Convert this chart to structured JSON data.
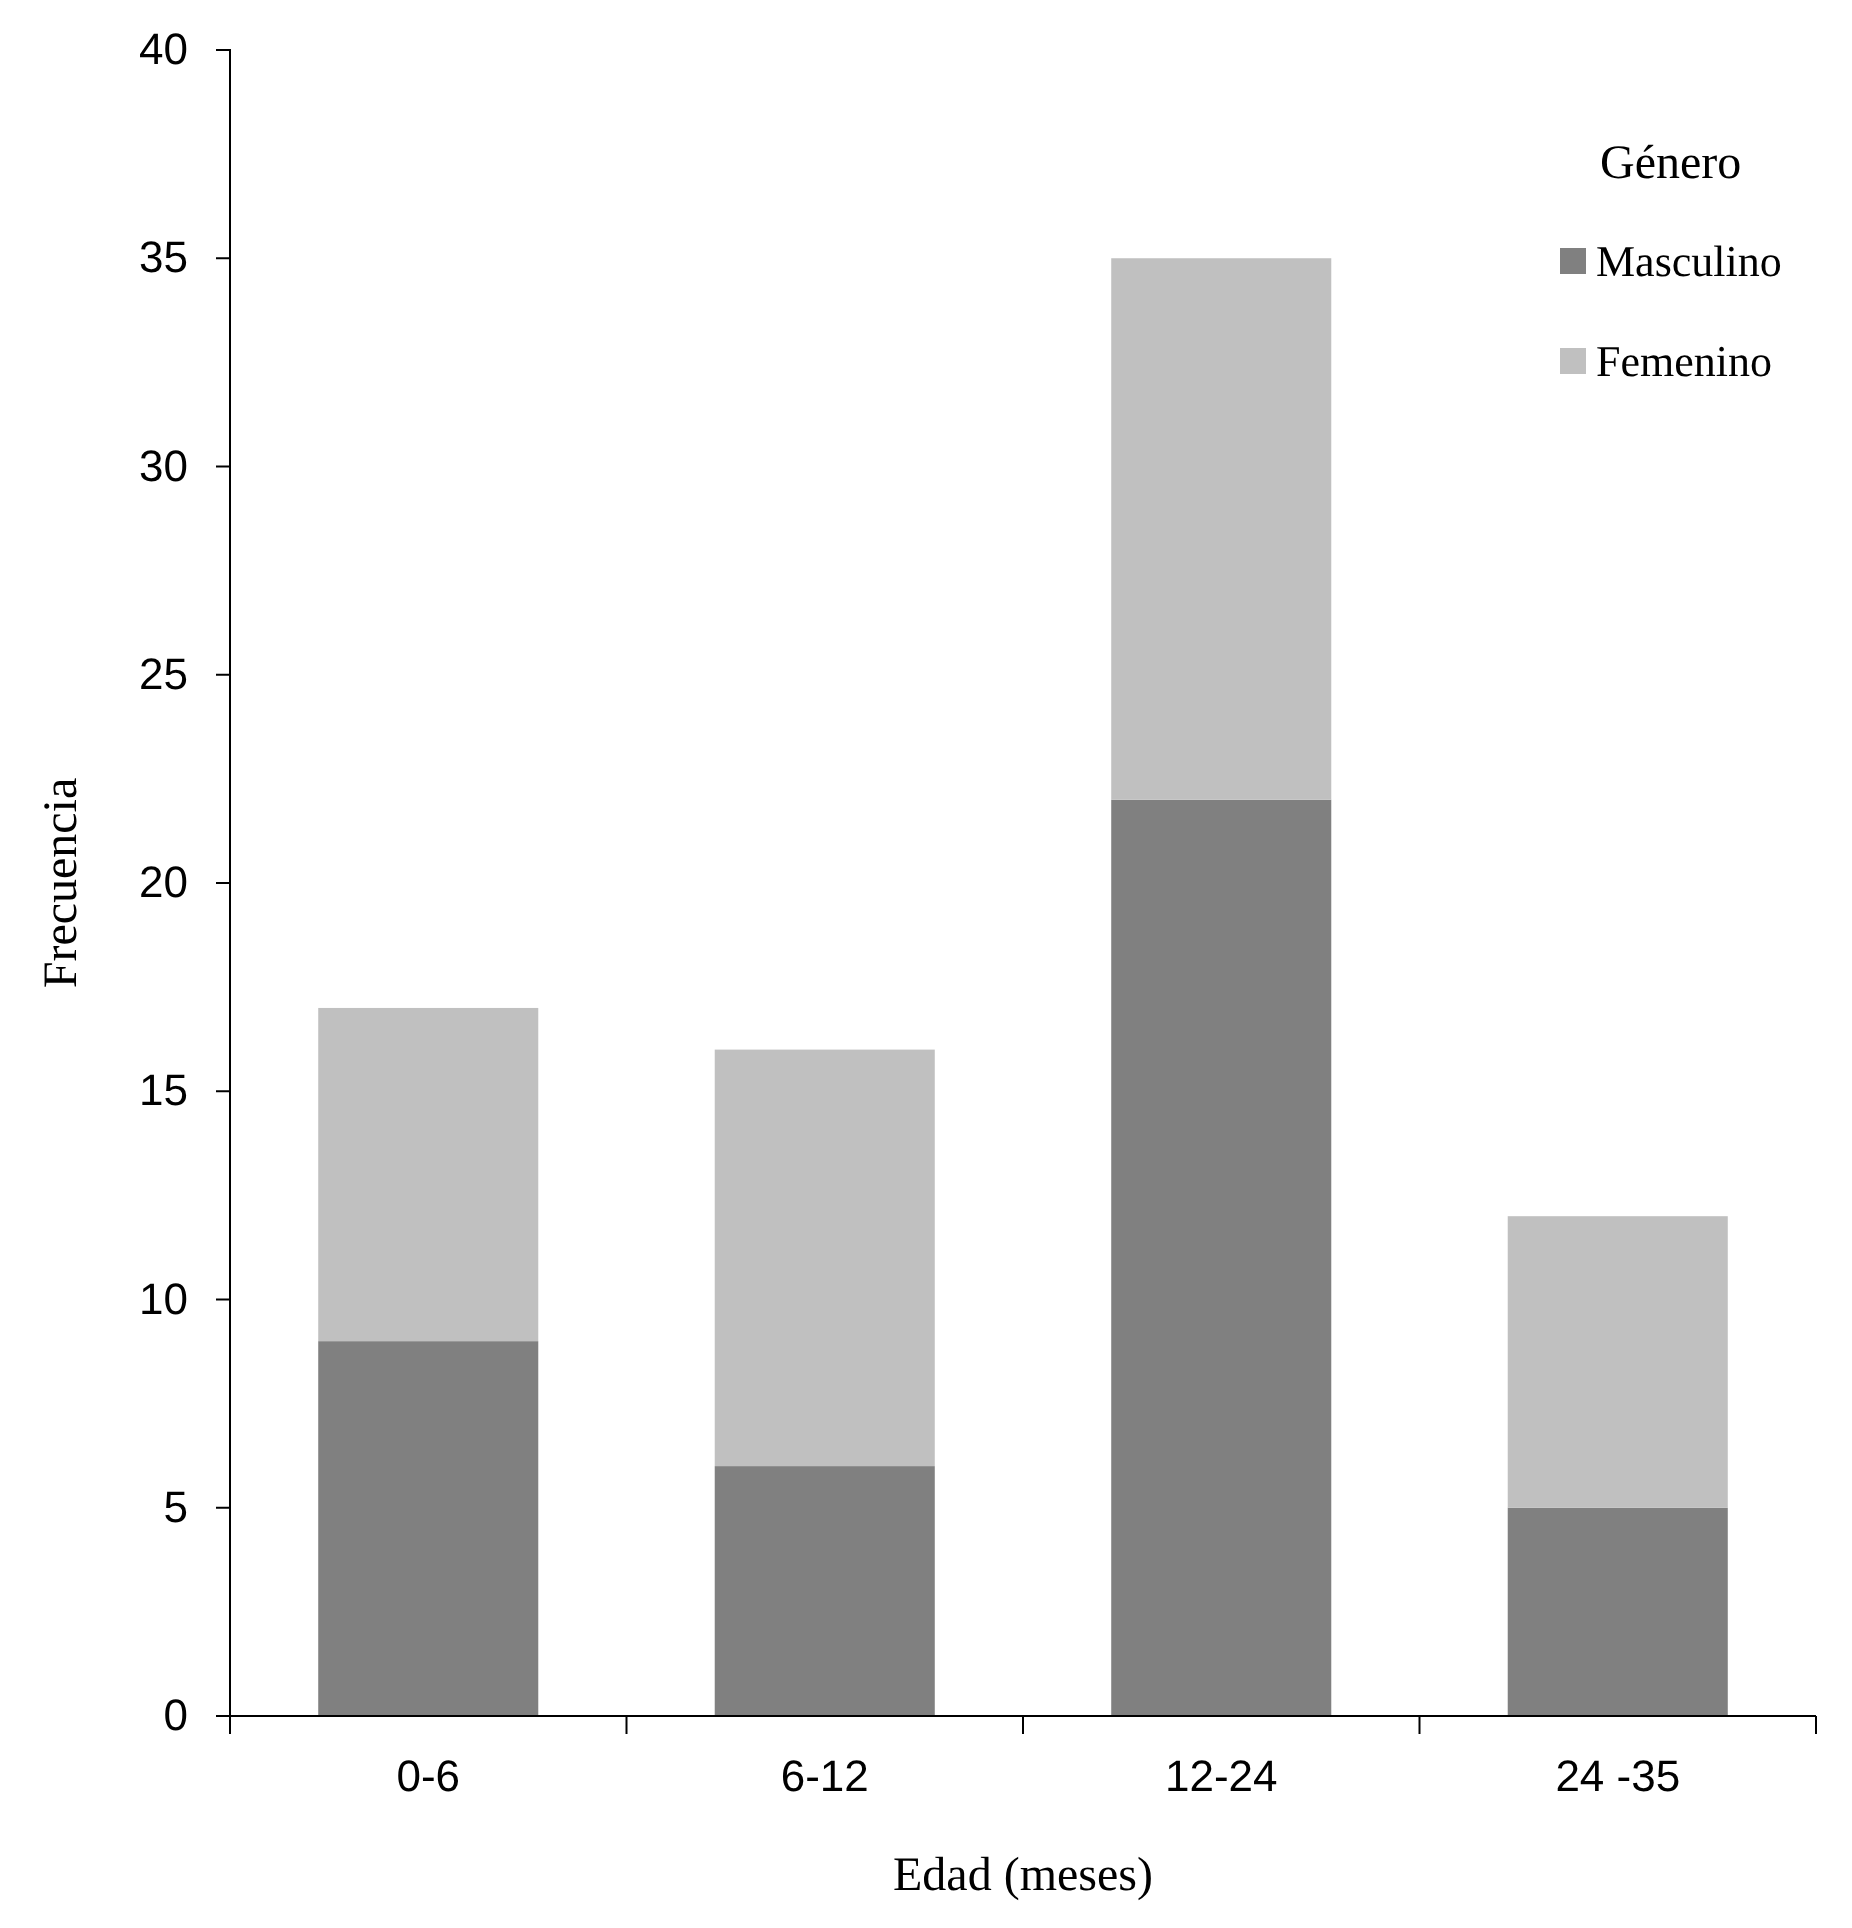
{
  "chart_data": {
    "type": "bar",
    "stacked": true,
    "xlabel": "Edad (meses)",
    "ylabel": "Frecuencia",
    "legend_title": "Género",
    "legend": "top right",
    "grid": false,
    "categories": [
      "0-6",
      "6-12",
      "12-24",
      "24 -35"
    ],
    "series": [
      {
        "name": "Masculino",
        "color": "#808080",
        "values": [
          9,
          6,
          22,
          5
        ]
      },
      {
        "name": "Femenino",
        "color": "#c0c0c0",
        "values": [
          8,
          10,
          13,
          7
        ]
      }
    ],
    "ylim": [
      0,
      40
    ],
    "yticks": [
      0,
      5,
      10,
      15,
      20,
      25,
      30,
      35,
      40
    ]
  }
}
